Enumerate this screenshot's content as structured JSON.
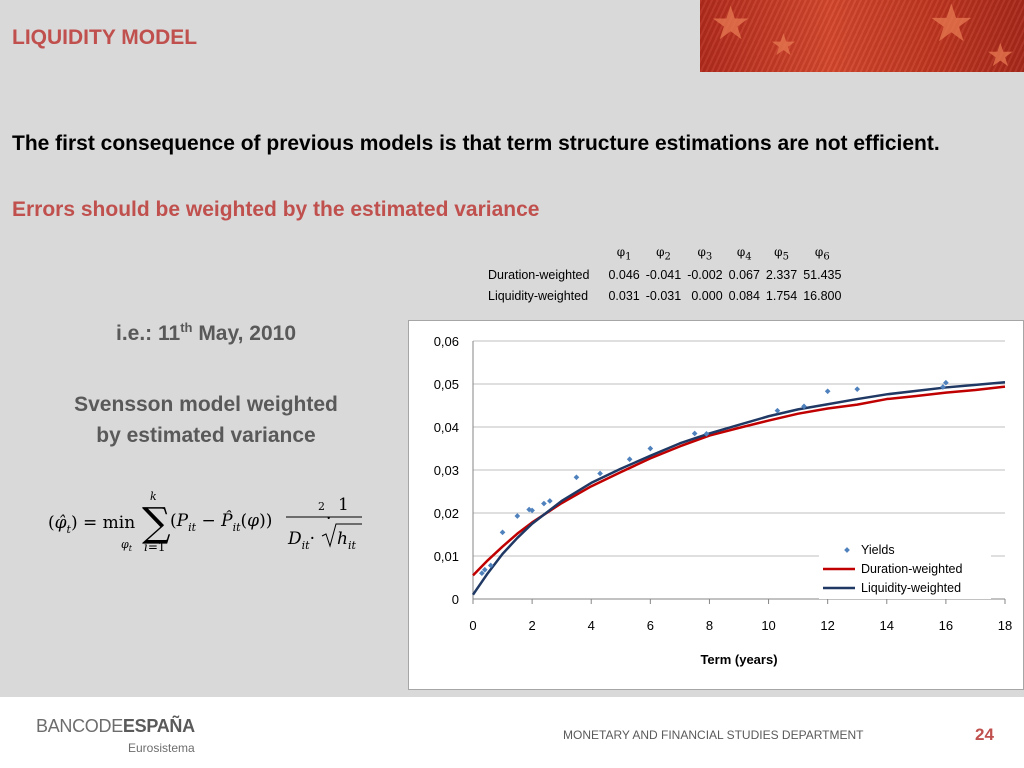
{
  "slide": {
    "title": "LIQUIDITY MODEL",
    "headline": "The first consequence of previous models is that term structure estimations are not efficient.",
    "subhead": "Errors should be weighted by the estimated variance",
    "ie_prefix": "i.e.: 11",
    "ie_sup": "th",
    "ie_suffix": " May, 2010",
    "svensson_line1": "Svensson model weighted",
    "svensson_line2": "by estimated variance",
    "page_number": "24"
  },
  "table": {
    "headers": [
      "φ1",
      "φ2",
      "φ3",
      "φ4",
      "φ5",
      "φ6"
    ],
    "rows": [
      {
        "label": "Duration-weighted",
        "values": [
          "0.046",
          "-0.041",
          "-0.002",
          "0.067",
          "2.337",
          "51.435"
        ]
      },
      {
        "label": "Liquidity-weighted",
        "values": [
          "0.031",
          "-0.031",
          "0.000",
          "0.084",
          "1.754",
          "16.800"
        ]
      }
    ]
  },
  "footer": {
    "logo_part1": "BANCO",
    "logo_part2": "DE",
    "logo_part3": "ESPAÑA",
    "logo_sub": "Eurosistema",
    "department": "MONETARY AND FINANCIAL STUDIES DEPARTMENT"
  },
  "colors": {
    "accent": "#c0504d",
    "yields": "#4f81bd",
    "duration": "#c00000",
    "liquidity": "#1f3864"
  },
  "chart_data": {
    "type": "scatter",
    "xlabel": "Term (years)",
    "ylabel": "",
    "xlim": [
      0,
      18
    ],
    "ylim": [
      0,
      0.06
    ],
    "x_ticks": [
      "0",
      "2",
      "4",
      "6",
      "8",
      "10",
      "12",
      "14",
      "16",
      "18"
    ],
    "y_ticks": [
      "0",
      "0,01",
      "0,02",
      "0,03",
      "0,04",
      "0,05",
      "0,06"
    ],
    "legend_position": "bottom-right",
    "series": [
      {
        "name": "Yields",
        "kind": "scatter",
        "x": [
          0.3,
          0.4,
          0.6,
          1.0,
          1.5,
          1.9,
          2.0,
          2.4,
          2.6,
          3.5,
          4.3,
          5.3,
          6.0,
          7.5,
          7.9,
          10.3,
          11.2,
          12.0,
          13.0,
          15.9,
          16.0
        ],
        "y": [
          0.006,
          0.0068,
          0.0078,
          0.0155,
          0.0193,
          0.0208,
          0.0206,
          0.0222,
          0.0228,
          0.0283,
          0.0292,
          0.0325,
          0.035,
          0.0385,
          0.0384,
          0.0438,
          0.0448,
          0.0483,
          0.0488,
          0.0493,
          0.0503
        ]
      },
      {
        "name": "Duration-weighted",
        "kind": "line",
        "x": [
          0,
          0.5,
          1,
          1.5,
          2,
          3,
          4,
          5,
          6,
          7,
          8,
          9,
          10,
          11,
          12,
          13,
          14,
          15,
          16,
          17,
          18
        ],
        "y": [
          0.0055,
          0.009,
          0.0122,
          0.0152,
          0.0178,
          0.0223,
          0.0262,
          0.0295,
          0.0327,
          0.0355,
          0.038,
          0.0398,
          0.0415,
          0.0431,
          0.0443,
          0.0452,
          0.0465,
          0.0472,
          0.048,
          0.0486,
          0.0494
        ]
      },
      {
        "name": "Liquidity-weighted",
        "kind": "line",
        "x": [
          0,
          0.5,
          1,
          1.5,
          2,
          3,
          4,
          5,
          6,
          7,
          8,
          9,
          10,
          11,
          12,
          13,
          14,
          15,
          16,
          17,
          18
        ],
        "y": [
          0.001,
          0.006,
          0.0105,
          0.0142,
          0.0175,
          0.0228,
          0.027,
          0.0303,
          0.0333,
          0.0362,
          0.0385,
          0.0405,
          0.0425,
          0.0441,
          0.0453,
          0.0465,
          0.0476,
          0.0484,
          0.0492,
          0.0498,
          0.0504
        ]
      }
    ]
  }
}
